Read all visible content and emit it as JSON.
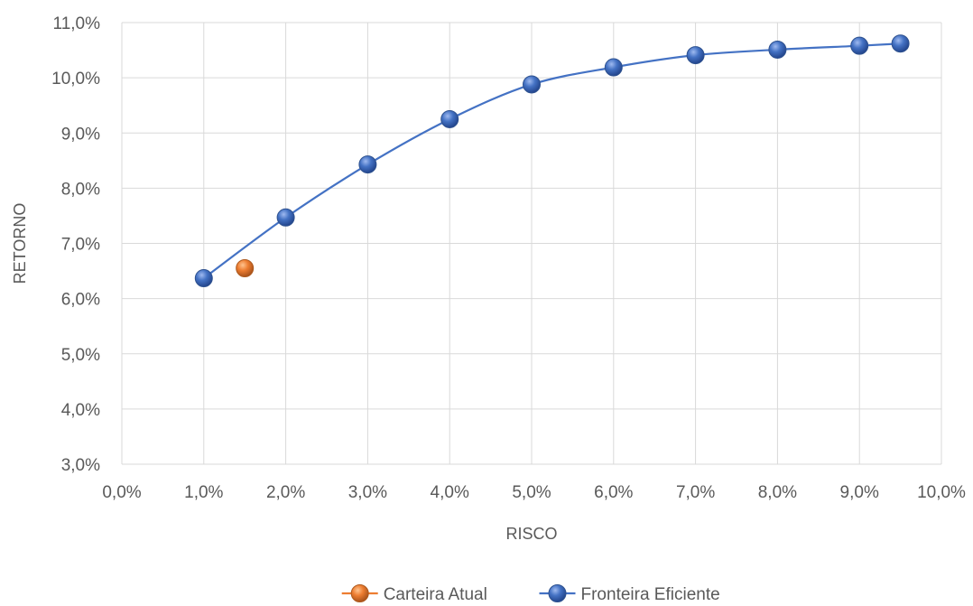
{
  "chart_data": {
    "type": "scatter",
    "title": "",
    "xlabel": "RISCO",
    "ylabel": "RETORNO",
    "xlim": [
      0.0,
      10.0
    ],
    "ylim": [
      3.0,
      11.0
    ],
    "x_ticks": [
      "0,0%",
      "1,0%",
      "2,0%",
      "3,0%",
      "4,0%",
      "5,0%",
      "6,0%",
      "7,0%",
      "8,0%",
      "9,0%",
      "10,0%"
    ],
    "y_ticks": [
      "3,0%",
      "4,0%",
      "5,0%",
      "6,0%",
      "7,0%",
      "8,0%",
      "9,0%",
      "10,0%",
      "11,0%"
    ],
    "grid": true,
    "legend_position": "bottom",
    "series": [
      {
        "name": "Carteira Atual",
        "color": "#ED7D31",
        "line": false,
        "x": [
          1.5
        ],
        "y": [
          6.55
        ]
      },
      {
        "name": "Fronteira Eficiente",
        "color": "#4472C4",
        "line": true,
        "x": [
          1.0,
          2.0,
          3.0,
          4.0,
          5.0,
          6.0,
          7.0,
          8.0,
          9.0,
          9.5
        ],
        "y": [
          6.37,
          7.47,
          8.43,
          9.25,
          9.88,
          10.19,
          10.41,
          10.51,
          10.58,
          10.62
        ]
      }
    ]
  }
}
